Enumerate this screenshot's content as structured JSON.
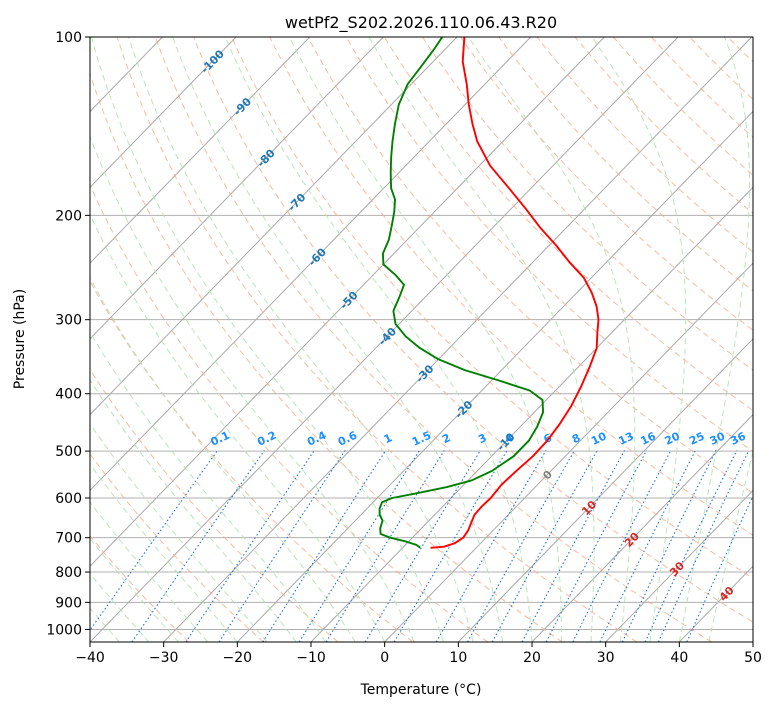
{
  "chart_data": {
    "type": "line",
    "subtype": "skew-T log-P diagram",
    "title": "wetPf2_S202.2026.110.06.43.R20",
    "xlabel": "Temperature (°C)",
    "ylabel": "Pressure (hPa)",
    "xlim": [
      -40,
      50
    ],
    "ylim": [
      1050,
      100
    ],
    "y_scale": "log",
    "x_ticks": [
      "−40",
      "−30",
      "−20",
      "−10",
      "0",
      "10",
      "20",
      "30",
      "40",
      "50"
    ],
    "y_ticks": [
      {
        "p": 100,
        "label": "100"
      },
      {
        "p": 200,
        "label": "200"
      },
      {
        "p": 300,
        "label": "300"
      },
      {
        "p": 400,
        "label": "400"
      },
      {
        "p": 500,
        "label": "500"
      },
      {
        "p": 600,
        "label": "600"
      },
      {
        "p": 700,
        "label": "700"
      },
      {
        "p": 800,
        "label": "800"
      },
      {
        "p": 900,
        "label": "900"
      },
      {
        "p": 1000,
        "label": "1000"
      }
    ],
    "grid": true,
    "series": [
      {
        "color": "#ff0000",
        "points": [
          {
            "p": 728,
            "t": -6.2
          },
          {
            "p": 725,
            "t": -4.5
          },
          {
            "p": 715,
            "t": -3.5
          },
          {
            "p": 700,
            "t": -3.1
          },
          {
            "p": 680,
            "t": -3.4
          },
          {
            "p": 660,
            "t": -4.0
          },
          {
            "p": 640,
            "t": -4.6
          },
          {
            "p": 620,
            "t": -4.7
          },
          {
            "p": 600,
            "t": -4.6
          },
          {
            "p": 570,
            "t": -4.9
          },
          {
            "p": 540,
            "t": -4.7
          },
          {
            "p": 510,
            "t": -4.4
          },
          {
            "p": 480,
            "t": -4.5
          },
          {
            "p": 450,
            "t": -5.0
          },
          {
            "p": 420,
            "t": -5.8
          },
          {
            "p": 390,
            "t": -7.0
          },
          {
            "p": 360,
            "t": -8.5
          },
          {
            "p": 335,
            "t": -10.0
          },
          {
            "p": 315,
            "t": -12.0
          },
          {
            "p": 300,
            "t": -13.5
          },
          {
            "p": 285,
            "t": -15.5
          },
          {
            "p": 270,
            "t": -18.0
          },
          {
            "p": 255,
            "t": -21.0
          },
          {
            "p": 240,
            "t": -25.0
          },
          {
            "p": 225,
            "t": -29.0
          },
          {
            "p": 210,
            "t": -33.5
          },
          {
            "p": 195,
            "t": -38.0
          },
          {
            "p": 180,
            "t": -43.0
          },
          {
            "p": 165,
            "t": -48.5
          },
          {
            "p": 150,
            "t": -53.5
          },
          {
            "p": 140,
            "t": -56.5
          },
          {
            "p": 130,
            "t": -59.5
          },
          {
            "p": 120,
            "t": -62.5
          },
          {
            "p": 110,
            "t": -66.0
          },
          {
            "p": 100,
            "t": -69.0
          }
        ]
      },
      {
        "color": "#008000",
        "points": [
          {
            "p": 728,
            "t": -7.6
          },
          {
            "p": 720,
            "t": -8.5
          },
          {
            "p": 710,
            "t": -10.5
          },
          {
            "p": 700,
            "t": -13.0
          },
          {
            "p": 690,
            "t": -14.8
          },
          {
            "p": 675,
            "t": -15.6
          },
          {
            "p": 655,
            "t": -16.3
          },
          {
            "p": 640,
            "t": -17.5
          },
          {
            "p": 625,
            "t": -18.3
          },
          {
            "p": 610,
            "t": -18.8
          },
          {
            "p": 600,
            "t": -18.0
          },
          {
            "p": 590,
            "t": -15.5
          },
          {
            "p": 575,
            "t": -12.0
          },
          {
            "p": 560,
            "t": -9.5
          },
          {
            "p": 540,
            "t": -8.0
          },
          {
            "p": 510,
            "t": -7.0
          },
          {
            "p": 480,
            "t": -7.0
          },
          {
            "p": 455,
            "t": -7.7
          },
          {
            "p": 430,
            "t": -8.8
          },
          {
            "p": 410,
            "t": -10.5
          },
          {
            "p": 395,
            "t": -13.5
          },
          {
            "p": 380,
            "t": -19.0
          },
          {
            "p": 365,
            "t": -25.0
          },
          {
            "p": 350,
            "t": -30.0
          },
          {
            "p": 335,
            "t": -34.0
          },
          {
            "p": 320,
            "t": -37.5
          },
          {
            "p": 305,
            "t": -40.5
          },
          {
            "p": 290,
            "t": -42.5
          },
          {
            "p": 275,
            "t": -43.5
          },
          {
            "p": 262,
            "t": -44.5
          },
          {
            "p": 252,
            "t": -47.0
          },
          {
            "p": 242,
            "t": -50.0
          },
          {
            "p": 232,
            "t": -51.5
          },
          {
            "p": 220,
            "t": -52.5
          },
          {
            "p": 208,
            "t": -54.0
          },
          {
            "p": 197,
            "t": -55.5
          },
          {
            "p": 188,
            "t": -57.0
          },
          {
            "p": 180,
            "t": -59.0
          },
          {
            "p": 170,
            "t": -61.0
          },
          {
            "p": 160,
            "t": -63.0
          },
          {
            "p": 150,
            "t": -65.0
          },
          {
            "p": 140,
            "t": -67.0
          },
          {
            "p": 130,
            "t": -69.0
          },
          {
            "p": 120,
            "t": -70.5
          },
          {
            "p": 112,
            "t": -71.0
          },
          {
            "p": 105,
            "t": -71.5
          },
          {
            "p": 100,
            "t": -72.0
          }
        ]
      }
    ],
    "isotherm_labels": {
      "color": "#1f77b4",
      "items": [
        {
          "t": -100,
          "p": 110,
          "label": "-100"
        },
        {
          "t": -90,
          "p": 131,
          "label": "-90"
        },
        {
          "t": -80,
          "p": 160,
          "label": "-80"
        },
        {
          "t": -70,
          "p": 190,
          "label": "-70"
        },
        {
          "t": -60,
          "p": 235,
          "label": "-60"
        },
        {
          "t": -50,
          "p": 278,
          "label": "-50"
        },
        {
          "t": -40,
          "p": 320,
          "label": "-40"
        },
        {
          "t": -30,
          "p": 370,
          "label": "-30"
        },
        {
          "t": -20,
          "p": 425,
          "label": "-20"
        },
        {
          "t": -10,
          "p": 482,
          "label": "-10"
        },
        {
          "t": 0,
          "p": 548,
          "label": "0"
        },
        {
          "t": 10,
          "p": 623,
          "label": "10"
        },
        {
          "t": 20,
          "p": 705,
          "label": "20"
        },
        {
          "t": 30,
          "p": 790,
          "label": "30"
        },
        {
          "t": 40,
          "p": 870,
          "label": "40"
        }
      ]
    },
    "mixing_ratio_labels": {
      "color": "#1e90ff",
      "p": 488,
      "items": [
        {
          "w": 0.1,
          "label": "0.1"
        },
        {
          "w": 0.2,
          "label": "0.2"
        },
        {
          "w": 0.4,
          "label": "0.4"
        },
        {
          "w": 0.6,
          "label": "0.6"
        },
        {
          "w": 1,
          "label": "1"
        },
        {
          "w": 1.5,
          "label": "1.5"
        },
        {
          "w": 2,
          "label": "2"
        },
        {
          "w": 3,
          "label": "3"
        },
        {
          "w": 4,
          "label": "4"
        },
        {
          "w": 6,
          "label": "6"
        },
        {
          "w": 8,
          "label": "8"
        },
        {
          "w": 10,
          "label": "10"
        },
        {
          "w": 13,
          "label": "13"
        },
        {
          "w": 16,
          "label": "16"
        },
        {
          "w": 20,
          "label": "20"
        },
        {
          "w": 25,
          "label": "25"
        },
        {
          "w": 30,
          "label": "30"
        },
        {
          "w": 36,
          "label": "36"
        }
      ]
    },
    "background_lines": {
      "isotherm_color": "#a9a9a9",
      "dry_adiabat_color": "#f4a582",
      "moist_adiabat_color": "#b2dfb2",
      "mixing_ratio_color": "#1f77d4",
      "mixing_ratios": [
        0.1,
        0.2,
        0.4,
        0.6,
        1,
        1.5,
        2,
        3,
        4,
        6,
        8,
        10,
        13,
        16,
        20,
        25,
        30,
        36,
        40,
        50
      ]
    }
  }
}
